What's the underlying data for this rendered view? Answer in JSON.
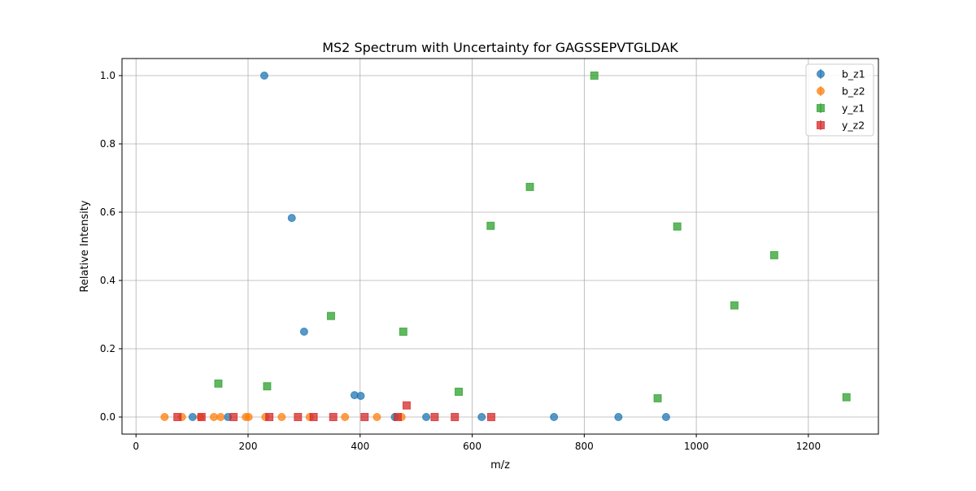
{
  "chart_data": {
    "type": "scatter",
    "title": "MS2 Spectrum with Uncertainty for GAGSSEPVTGLDAK",
    "xlabel": "m/z",
    "ylabel": "Relative Intensity",
    "xlim": [
      -25,
      1325
    ],
    "ylim": [
      -0.05,
      1.05
    ],
    "xticks": [
      0,
      200,
      400,
      600,
      800,
      1000,
      1200
    ],
    "yticks": [
      0.0,
      0.2,
      0.4,
      0.6,
      0.8,
      1.0
    ],
    "xtick_labels": [
      "0",
      "200",
      "400",
      "600",
      "800",
      "1000",
      "1200"
    ],
    "ytick_labels": [
      "0.0",
      "0.2",
      "0.4",
      "0.6",
      "0.8",
      "1.0"
    ],
    "grid": true,
    "legend_position": "top-right",
    "series": [
      {
        "name": "b_z1",
        "marker": "circle",
        "color": "#1f77b4",
        "points": [
          {
            "x": 101,
            "y": 0
          },
          {
            "x": 164,
            "y": 0
          },
          {
            "x": 229,
            "y": 1.0
          },
          {
            "x": 278,
            "y": 0.583
          },
          {
            "x": 300,
            "y": 0.25
          },
          {
            "x": 390,
            "y": 0.064
          },
          {
            "x": 401,
            "y": 0.062
          },
          {
            "x": 462,
            "y": 0
          },
          {
            "x": 518,
            "y": 0
          },
          {
            "x": 617,
            "y": 0
          },
          {
            "x": 746,
            "y": 0
          },
          {
            "x": 861,
            "y": 0
          },
          {
            "x": 946,
            "y": 0
          }
        ]
      },
      {
        "name": "b_z2",
        "marker": "circle",
        "color": "#ff7f0e",
        "points": [
          {
            "x": 51,
            "y": 0
          },
          {
            "x": 82,
            "y": 0
          },
          {
            "x": 115,
            "y": 0
          },
          {
            "x": 139,
            "y": 0
          },
          {
            "x": 151,
            "y": 0
          },
          {
            "x": 196,
            "y": 0
          },
          {
            "x": 201,
            "y": 0
          },
          {
            "x": 231,
            "y": 0
          },
          {
            "x": 260,
            "y": 0
          },
          {
            "x": 310,
            "y": 0
          },
          {
            "x": 373,
            "y": 0
          },
          {
            "x": 430,
            "y": 0
          },
          {
            "x": 474,
            "y": 0
          }
        ]
      },
      {
        "name": "y_z1",
        "marker": "square",
        "color": "#2ca02c",
        "points": [
          {
            "x": 147,
            "y": 0.098
          },
          {
            "x": 234,
            "y": 0.09
          },
          {
            "x": 348,
            "y": 0.296
          },
          {
            "x": 477,
            "y": 0.25
          },
          {
            "x": 576,
            "y": 0.074
          },
          {
            "x": 633,
            "y": 0.56
          },
          {
            "x": 703,
            "y": 0.674
          },
          {
            "x": 818,
            "y": 1.0
          },
          {
            "x": 931,
            "y": 0.055
          },
          {
            "x": 966,
            "y": 0.558
          },
          {
            "x": 1068,
            "y": 0.327
          },
          {
            "x": 1139,
            "y": 0.474
          },
          {
            "x": 1268,
            "y": 0.058
          }
        ]
      },
      {
        "name": "y_z2",
        "marker": "square",
        "color": "#d62728",
        "points": [
          {
            "x": 74,
            "y": 0
          },
          {
            "x": 117,
            "y": 0
          },
          {
            "x": 174,
            "y": 0
          },
          {
            "x": 238,
            "y": 0
          },
          {
            "x": 289,
            "y": 0
          },
          {
            "x": 317,
            "y": 0
          },
          {
            "x": 352,
            "y": 0
          },
          {
            "x": 408,
            "y": 0
          },
          {
            "x": 467,
            "y": 0
          },
          {
            "x": 483,
            "y": 0.034
          },
          {
            "x": 533,
            "y": 0
          },
          {
            "x": 569,
            "y": 0
          },
          {
            "x": 634,
            "y": 0
          }
        ]
      }
    ]
  }
}
